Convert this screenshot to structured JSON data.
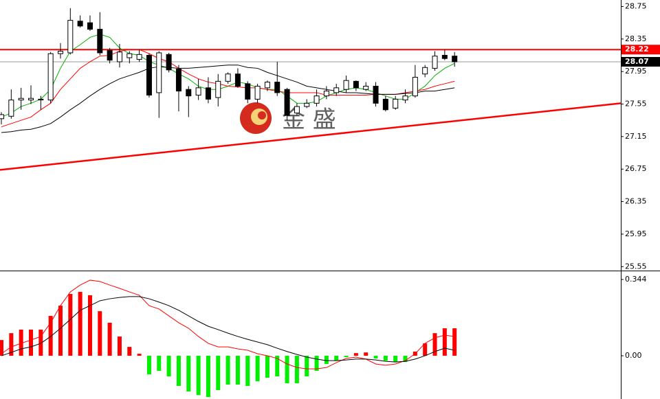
{
  "chart_data": [
    {
      "type": "candlestick",
      "open": [
        27.37,
        27.4,
        27.6,
        27.6,
        27.6,
        27.6,
        28.17,
        28.18,
        28.57,
        28.55,
        28.47,
        28.21,
        28.07,
        28.12,
        28.1,
        28.15,
        27.69,
        28.16,
        27.98,
        27.73,
        27.66,
        27.75,
        27.63,
        27.83,
        27.92,
        27.8,
        27.61,
        27.75,
        27.82,
        27.73,
        27.44,
        27.52,
        27.56,
        27.65,
        27.69,
        27.73,
        27.83,
        27.73,
        27.77,
        27.61,
        27.5,
        27.6,
        27.65,
        27.92,
        27.99,
        28.15,
        28.14
      ],
      "high": [
        27.45,
        27.73,
        27.75,
        27.78,
        27.65,
        28.19,
        28.3,
        28.73,
        28.64,
        28.64,
        28.68,
        28.24,
        28.29,
        28.2,
        28.22,
        28.17,
        28.2,
        28.18,
        28.03,
        27.77,
        27.86,
        27.88,
        27.92,
        27.94,
        27.99,
        27.83,
        27.8,
        27.84,
        28.07,
        27.75,
        27.56,
        27.61,
        27.73,
        27.77,
        27.8,
        27.9,
        27.84,
        27.82,
        27.82,
        27.65,
        27.65,
        27.73,
        28.03,
        28.03,
        28.2,
        28.22,
        28.19
      ],
      "low": [
        27.3,
        27.37,
        27.48,
        27.55,
        27.48,
        27.56,
        28.11,
        28.16,
        28.49,
        28.45,
        28.15,
        28.05,
        28.0,
        28.05,
        28.07,
        27.63,
        27.38,
        27.94,
        27.46,
        27.39,
        27.6,
        27.56,
        27.52,
        27.8,
        27.75,
        27.56,
        27.56,
        27.71,
        27.65,
        27.35,
        27.41,
        27.5,
        27.52,
        27.61,
        27.65,
        27.69,
        27.71,
        27.71,
        27.52,
        27.46,
        27.48,
        27.56,
        27.63,
        27.88,
        27.96,
        28.09,
        28.01
      ],
      "close": [
        27.42,
        27.6,
        27.62,
        27.62,
        27.61,
        28.17,
        28.2,
        28.58,
        28.51,
        28.47,
        28.18,
        28.09,
        28.19,
        28.17,
        28.16,
        27.66,
        28.18,
        27.97,
        27.71,
        27.65,
        27.75,
        27.61,
        27.83,
        27.92,
        27.77,
        27.61,
        27.77,
        27.82,
        27.69,
        27.41,
        27.52,
        27.56,
        27.65,
        27.71,
        27.75,
        27.84,
        27.75,
        27.77,
        27.56,
        27.48,
        27.61,
        27.65,
        27.88,
        28.0,
        28.14,
        28.11,
        28.07
      ],
      "up_color": "#ffffff",
      "down_color": "#000000",
      "lines": [
        {
          "color": "#00b000",
          "values": [
            27.39,
            27.44,
            27.52,
            27.56,
            27.61,
            27.73,
            27.99,
            28.2,
            28.28,
            28.37,
            28.41,
            28.37,
            28.24,
            28.17,
            28.15,
            28.07,
            28.03,
            27.99,
            27.92,
            27.86,
            27.77,
            27.73,
            27.73,
            27.77,
            27.82,
            27.8,
            27.75,
            27.73,
            27.73,
            27.65,
            27.56,
            27.56,
            27.58,
            27.65,
            27.69,
            27.73,
            27.75,
            27.73,
            27.69,
            27.65,
            27.61,
            27.61,
            27.69,
            27.77,
            27.9,
            27.99,
            28.05
          ]
        },
        {
          "color": "#ff0000",
          "values": [
            27.27,
            27.31,
            27.35,
            27.39,
            27.48,
            27.56,
            27.73,
            27.86,
            27.99,
            28.07,
            28.14,
            28.15,
            28.2,
            28.22,
            28.22,
            28.17,
            28.11,
            28.07,
            27.99,
            27.92,
            27.86,
            27.82,
            27.8,
            27.77,
            27.76,
            27.75,
            27.75,
            27.73,
            27.71,
            27.69,
            27.69,
            27.69,
            27.69,
            27.66,
            27.66,
            27.66,
            27.66,
            27.66,
            27.67,
            27.67,
            27.67,
            27.69,
            27.71,
            27.73,
            27.77,
            27.8,
            27.83
          ]
        },
        {
          "color": "#000000",
          "values": [
            27.2,
            27.21,
            27.23,
            27.24,
            27.27,
            27.31,
            27.39,
            27.48,
            27.56,
            27.65,
            27.73,
            27.8,
            27.86,
            27.9,
            27.94,
            27.99,
            28.01,
            28.0,
            27.99,
            27.99,
            28.0,
            28.01,
            28.02,
            28.03,
            28.03,
            28.0,
            27.99,
            27.94,
            27.9,
            27.86,
            27.82,
            27.77,
            27.75,
            27.73,
            27.71,
            27.69,
            27.69,
            27.68,
            27.67,
            27.67,
            27.67,
            27.68,
            27.69,
            27.71,
            27.71,
            27.73,
            27.75
          ]
        }
      ],
      "hlines": [
        {
          "value": 28.22,
          "color": "#ff0000"
        },
        {
          "value": 28.07,
          "color": "#000000"
        }
      ],
      "trendline": {
        "values": [
          26.74,
          27.56
        ],
        "color": "#ff0000"
      },
      "watermark": "金 盛",
      "ylim": [
        25.51,
        28.83
      ],
      "yticks": [
        28.75,
        28.35,
        27.95,
        27.55,
        27.15,
        26.75,
        26.35,
        25.95,
        25.55
      ]
    },
    {
      "type": "macd",
      "values": [
        0.071,
        0.102,
        0.118,
        0.118,
        0.118,
        0.18,
        0.226,
        0.279,
        0.288,
        0.273,
        0.201,
        0.149,
        0.087,
        0.04,
        0.009,
        -0.084,
        -0.068,
        -0.093,
        -0.136,
        -0.161,
        -0.177,
        -0.186,
        -0.155,
        -0.13,
        -0.13,
        -0.136,
        -0.115,
        -0.099,
        -0.093,
        -0.124,
        -0.124,
        -0.093,
        -0.068,
        -0.037,
        -0.022,
        -0.006,
        0.012,
        0.015,
        -0.012,
        -0.022,
        -0.028,
        -0.028,
        0.019,
        0.056,
        0.102,
        0.124,
        0.124
      ],
      "up_color": "#ff0000",
      "down_color": "#00ee00",
      "lines": [
        {
          "color": "#ff0000",
          "values": [
            0.009,
            0.04,
            0.056,
            0.071,
            0.087,
            0.149,
            0.226,
            0.288,
            0.319,
            0.341,
            0.335,
            0.319,
            0.304,
            0.288,
            0.273,
            0.226,
            0.211,
            0.18,
            0.149,
            0.124,
            0.087,
            0.056,
            0.04,
            0.04,
            0.031,
            0.025,
            0.009,
            0,
            -0.012,
            -0.037,
            -0.053,
            -0.059,
            -0.059,
            -0.053,
            -0.031,
            -0.012,
            -0.006,
            -0.015,
            -0.037,
            -0.043,
            -0.037,
            -0.022,
            0.009,
            0.056,
            0.081,
            0.093,
            0.087
          ]
        },
        {
          "color": "#000000",
          "values": [
            0,
            0.015,
            0.031,
            0.04,
            0.056,
            0.087,
            0.124,
            0.164,
            0.205,
            0.226,
            0.248,
            0.257,
            0.263,
            0.267,
            0.267,
            0.257,
            0.242,
            0.226,
            0.205,
            0.18,
            0.155,
            0.133,
            0.118,
            0.102,
            0.087,
            0.074,
            0.062,
            0.05,
            0.034,
            0.019,
            0.006,
            -0.006,
            -0.015,
            -0.022,
            -0.022,
            -0.019,
            -0.015,
            -0.015,
            -0.019,
            -0.025,
            -0.028,
            -0.025,
            -0.015,
            0,
            0.019,
            0.034,
            0.025
          ]
        }
      ],
      "ylim": [
        -0.195,
        0.378
      ],
      "yticks": [
        0.344,
        {
          "value": 0,
          "label": "0.00"
        }
      ]
    }
  ]
}
